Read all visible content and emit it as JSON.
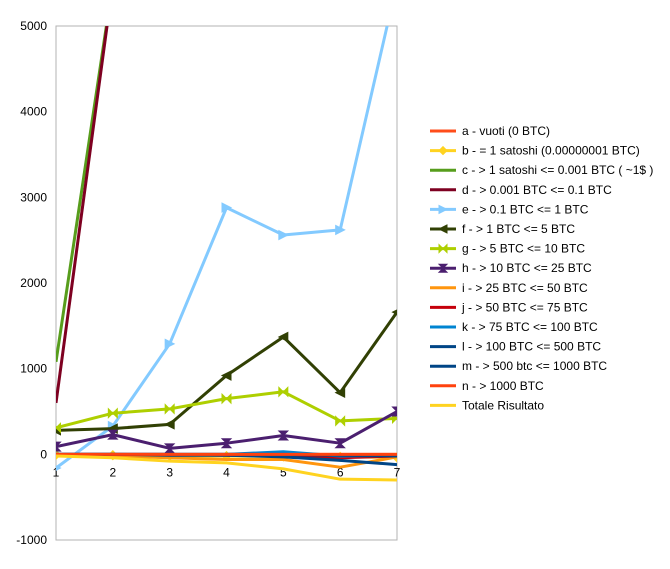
{
  "chart_data": {
    "type": "line",
    "x": [
      1,
      2,
      3,
      4,
      5,
      6,
      7
    ],
    "ylim": [
      -1000,
      5000
    ],
    "yticks": [
      -1000,
      0,
      1000,
      2000,
      3000,
      4000,
      5000
    ],
    "grid": false,
    "legend_position": "right",
    "series": [
      {
        "name": "a - vuoti (0 BTC)",
        "color": "#ff4d1a",
        "marker": "none",
        "values": [
          0,
          0,
          0,
          0,
          0,
          0,
          0
        ]
      },
      {
        "name": "b - = 1 satoshi (0.00000001 BTC)",
        "color": "#ffd320",
        "marker": "diamond",
        "values": [
          -5,
          -10,
          -15,
          -20,
          -25,
          -30,
          -35
        ]
      },
      {
        "name": "c - > 1 satoshi <= 0.001 BTC ( ~1$ )",
        "color": "#579d1c",
        "marker": "none",
        "values": [
          1080,
          5500,
          null,
          null,
          null,
          null,
          null
        ]
      },
      {
        "name": "d - > 0.001 BTC <= 0.1 BTC",
        "color": "#7e0021",
        "marker": "none",
        "values": [
          600,
          5500,
          null,
          null,
          null,
          null,
          null
        ]
      },
      {
        "name": "e - > 0.1 BTC <= 1 BTC",
        "color": "#83caff",
        "marker": "triangle-right",
        "values": [
          -160,
          330,
          1290,
          2880,
          2560,
          2620,
          5500
        ]
      },
      {
        "name": "f - > 1 BTC <= 5 BTC",
        "color": "#314004",
        "marker": "triangle-left",
        "values": [
          280,
          300,
          350,
          920,
          1370,
          720,
          1660
        ]
      },
      {
        "name": "g - > 5 BTC <= 10 BTC",
        "color": "#aecf00",
        "marker": "bowtie",
        "values": [
          310,
          480,
          530,
          650,
          730,
          390,
          420
        ]
      },
      {
        "name": "h - > 10 BTC <= 25 BTC",
        "color": "#4b1f6f",
        "marker": "hourglass",
        "values": [
          90,
          230,
          70,
          130,
          220,
          130,
          500
        ]
      },
      {
        "name": "i - > 25 BTC <= 50 BTC",
        "color": "#ff950e",
        "marker": "none",
        "values": [
          0,
          -20,
          -40,
          -60,
          -60,
          -150,
          -30
        ]
      },
      {
        "name": "j - > 50 BTC <= 75 BTC",
        "color": "#c5000b",
        "marker": "none",
        "values": [
          0,
          0,
          0,
          -10,
          -20,
          -40,
          -20
        ]
      },
      {
        "name": "k - > 75 BTC <= 100 BTC",
        "color": "#0084d1",
        "marker": "none",
        "values": [
          0,
          0,
          0,
          0,
          30,
          -20,
          -10
        ]
      },
      {
        "name": "l - > 100 BTC <= 500 BTC",
        "color": "#004586",
        "marker": "none",
        "values": [
          0,
          0,
          -10,
          -10,
          -30,
          -70,
          -120
        ]
      },
      {
        "name": "m - > 500 btc <= 1000 BTC",
        "color": "#004586",
        "marker": "none",
        "values": [
          0,
          0,
          0,
          0,
          0,
          -10,
          -20
        ]
      },
      {
        "name": "n - > 1000 BTC",
        "color": "#ff420e",
        "marker": "none",
        "values": [
          0,
          0,
          0,
          0,
          0,
          0,
          0
        ]
      },
      {
        "name": "Totale Risultato",
        "color": "#ffd320",
        "marker": "none",
        "values": [
          -20,
          -40,
          -80,
          -100,
          -170,
          -290,
          -300
        ]
      }
    ]
  }
}
